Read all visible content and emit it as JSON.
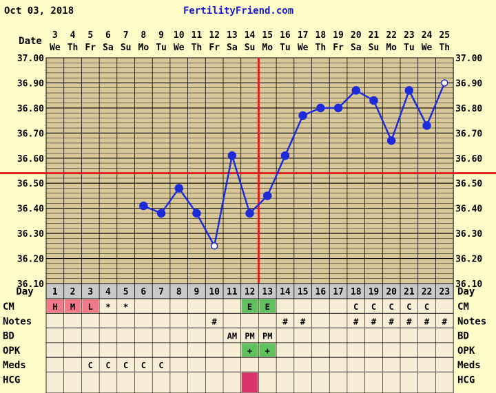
{
  "header": {
    "date": "Oct 03, 2018",
    "site": "FertilityFriend.com"
  },
  "labels": {
    "date_row": "Date",
    "day_row": "Day",
    "cm": "CM",
    "notes": "Notes",
    "bd": "BD",
    "opk": "OPK",
    "meds": "Meds",
    "hcg": "HCG"
  },
  "colors": {
    "background": "#fdfbc8",
    "grid_fill": "#d8c799",
    "temp_line": "#1f2bd9",
    "coverline": "#e02020",
    "cm_highlight": "#f07a8a",
    "egg_white": "#5fc25f",
    "hcg": "#d8336a",
    "day_row": "#c9c9c9"
  },
  "chart_data": {
    "type": "line",
    "title": "",
    "xlabel": "Day",
    "ylabel": "",
    "ylim": [
      36.1,
      37.0
    ],
    "yticks": [
      "36.10",
      "36.20",
      "36.30",
      "36.40",
      "36.50",
      "36.60",
      "36.70",
      "36.80",
      "36.90",
      "37.00"
    ],
    "dates": [
      "3",
      "4",
      "5",
      "6",
      "7",
      "8",
      "9",
      "10",
      "11",
      "12",
      "13",
      "14",
      "15",
      "16",
      "17",
      "18",
      "19",
      "20",
      "21",
      "22",
      "23",
      "24",
      "25"
    ],
    "weekdays": [
      "We",
      "Th",
      "Fr",
      "Sa",
      "Su",
      "Mo",
      "Tu",
      "We",
      "Th",
      "Fr",
      "Sa",
      "Su",
      "Mo",
      "Tu",
      "We",
      "Th",
      "Fr",
      "Sa",
      "Su",
      "Mo",
      "Tu",
      "We",
      "Th"
    ],
    "days": [
      1,
      2,
      3,
      4,
      5,
      6,
      7,
      8,
      9,
      10,
      11,
      12,
      13,
      14,
      15,
      16,
      17,
      18,
      19,
      20,
      21,
      22,
      23
    ],
    "temps": [
      null,
      null,
      null,
      null,
      null,
      36.41,
      36.38,
      36.48,
      36.38,
      36.25,
      36.61,
      36.38,
      36.45,
      36.61,
      36.77,
      36.8,
      36.8,
      36.87,
      36.83,
      36.67,
      36.87,
      36.73,
      36.9
    ],
    "open_points": [
      10,
      23
    ],
    "coverline": 36.54,
    "ovulation_day": 13,
    "rows": {
      "cm": [
        "H",
        "M",
        "L",
        "*",
        "*",
        "",
        "",
        "",
        "",
        "",
        "",
        "E",
        "E",
        "",
        "",
        "",
        "",
        "C",
        "C",
        "C",
        "C",
        "C",
        ""
      ],
      "notes": [
        "",
        "",
        "",
        "",
        "",
        "",
        "",
        "",
        "",
        "#",
        "",
        "",
        "",
        "#",
        "#",
        "",
        "",
        "#",
        "#",
        "#",
        "#",
        "#",
        "#"
      ],
      "bd": [
        "",
        "",
        "",
        "",
        "",
        "",
        "",
        "",
        "",
        "",
        "AM",
        "PM",
        "PM",
        "",
        "",
        "",
        "",
        "",
        "",
        "",
        "",
        "",
        ""
      ],
      "opk": [
        "",
        "",
        "",
        "",
        "",
        "",
        "",
        "",
        "",
        "",
        "",
        "+",
        "+",
        "",
        "",
        "",
        "",
        "",
        "",
        "",
        "",
        "",
        ""
      ],
      "meds": [
        "",
        "",
        "C",
        "C",
        "C",
        "C",
        "C",
        "",
        "",
        "",
        "",
        "",
        "",
        "",
        "",
        "",
        "",
        "",
        "",
        "",
        "",
        "",
        ""
      ],
      "hcg": [
        "",
        "",
        "",
        "",
        "",
        "",
        "",
        "",
        "",
        "",
        "",
        "■",
        "",
        "",
        "",
        "",
        "",
        "",
        "",
        "",
        "",
        "",
        ""
      ]
    }
  }
}
